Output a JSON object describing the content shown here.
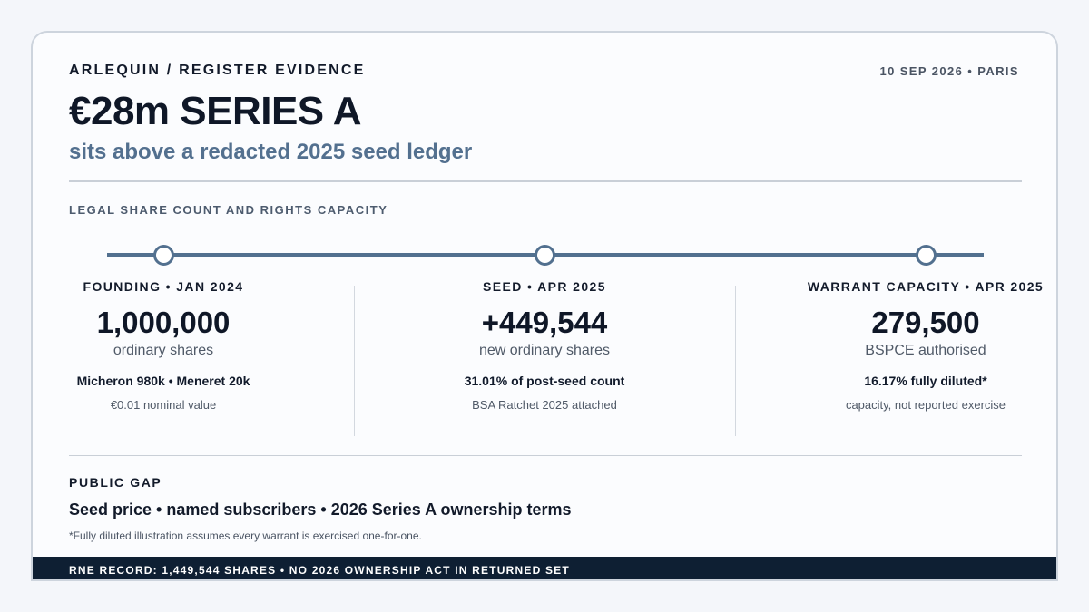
{
  "header": {
    "kicker": "ARLEQUIN / REGISTER EVIDENCE",
    "dateline": "10 SEP 2026 • PARIS",
    "headline": "€28m SERIES A",
    "subhead": "sits above a redacted 2025 seed ledger"
  },
  "section": {
    "label": "LEGAL SHARE COUNT AND RIGHTS CAPACITY"
  },
  "timeline": [
    {
      "heading": "FOUNDING • JAN 2024",
      "figure": "1,000,000",
      "unit": "ordinary shares",
      "detail": "Micheron 980k • Meneret 20k",
      "note": "€0.01 nominal value"
    },
    {
      "heading": "SEED • APR 2025",
      "figure": "+449,544",
      "unit": "new ordinary shares",
      "detail": "31.01% of post-seed count",
      "note": "BSA Ratchet 2025 attached"
    },
    {
      "heading": "WARRANT CAPACITY • APR 2025",
      "figure": "279,500",
      "unit": "BSPCE authorised",
      "detail": "16.17% fully diluted*",
      "note": "capacity, not reported exercise"
    }
  ],
  "public_gap": {
    "label": "PUBLIC GAP",
    "items": "Seed price • named subscribers • 2026 Series A ownership terms",
    "footnote": "*Fully diluted illustration assumes every warrant is exercised one-for-one."
  },
  "footer": {
    "text": "RNE RECORD: 1,449,544 SHARES • NO 2026 OWNERSHIP ACT IN RETURNED SET"
  },
  "colors": {
    "accent": "#52708f",
    "footer_bg": "#0e1f33",
    "ink": "#111a2b"
  }
}
